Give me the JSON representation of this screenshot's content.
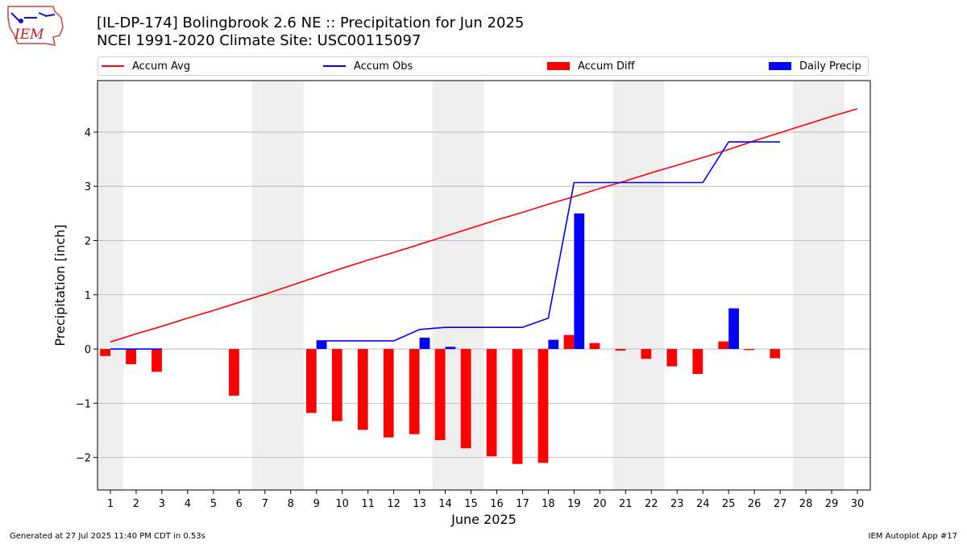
{
  "header": {
    "title_line1": "[IL-DP-174] Bolingbrook 2.6 NE :: Precipitation for Jun 2025",
    "title_line2": "NCEI 1991-2020 Climate Site: USC00115097",
    "logo_text": "IEM"
  },
  "footer": {
    "left": "Generated at 27 Jul 2025 11:40 PM CDT in 0.53s",
    "right": "IEM Autoplot App #17"
  },
  "colors": {
    "accum_avg": "#ff0000",
    "accum_obs": "#0000ff",
    "accum_diff": "#ff0000",
    "daily_precip": "#0000ff",
    "weekend_shade": "#eeeeee",
    "grid": "#b0b0b0"
  },
  "chart_data": {
    "type": "bar",
    "xlabel": "June 2025",
    "ylabel": "Precipitation [inch]",
    "xlim": [
      0.5,
      30.5
    ],
    "ylim": [
      -2.6,
      4.95
    ],
    "yticks": [
      -2,
      -1,
      0,
      1,
      2,
      3,
      4
    ],
    "ytick_labels": [
      "−2",
      "−1",
      "0",
      "1",
      "2",
      "3",
      "4"
    ],
    "x": [
      1,
      2,
      3,
      4,
      5,
      6,
      7,
      8,
      9,
      10,
      11,
      12,
      13,
      14,
      15,
      16,
      17,
      18,
      19,
      20,
      21,
      22,
      23,
      24,
      25,
      26,
      27,
      28,
      29,
      30
    ],
    "weekend_days": [
      1,
      7,
      8,
      14,
      15,
      21,
      22,
      28,
      29
    ],
    "grid": "horizontal",
    "legend_position": "top",
    "series": [
      {
        "name": "Accum Avg",
        "type": "line",
        "values": [
          0.13,
          0.28,
          0.42,
          0.57,
          0.71,
          0.86,
          1.01,
          1.17,
          1.33,
          1.49,
          1.64,
          1.78,
          1.93,
          2.08,
          2.23,
          2.38,
          2.52,
          2.67,
          2.81,
          2.96,
          3.1,
          3.25,
          3.39,
          3.53,
          3.68,
          3.84,
          3.99,
          4.14,
          4.29,
          4.43
        ]
      },
      {
        "name": "Accum Obs",
        "type": "line",
        "values": [
          0.0,
          0.0,
          0.0,
          null,
          null,
          null,
          null,
          null,
          0.15,
          0.15,
          0.15,
          0.15,
          0.36,
          0.4,
          0.4,
          0.4,
          0.4,
          0.57,
          3.07,
          3.07,
          3.07,
          3.07,
          3.07,
          3.07,
          3.82,
          3.82,
          3.82,
          null,
          null,
          null
        ]
      },
      {
        "name": "Accum Diff",
        "type": "bar",
        "values": [
          -0.13,
          -0.28,
          -0.42,
          null,
          null,
          -0.86,
          null,
          null,
          -1.18,
          -1.33,
          -1.49,
          -1.63,
          -1.57,
          -1.68,
          -1.83,
          -1.98,
          -2.12,
          -2.1,
          0.26,
          0.11,
          -0.03,
          -0.18,
          -0.32,
          -0.46,
          0.14,
          -0.02,
          -0.17,
          null,
          null,
          null
        ]
      },
      {
        "name": "Daily Precip",
        "type": "bar",
        "values": [
          0.0,
          0.0,
          0.0,
          null,
          null,
          null,
          null,
          null,
          0.15,
          0.0,
          0.0,
          0.0,
          0.21,
          0.04,
          0.0,
          0.0,
          0.0,
          0.17,
          2.5,
          0.0,
          0.0,
          0.0,
          0.0,
          0.0,
          0.75,
          0.0,
          0.0,
          null,
          null,
          null
        ]
      }
    ]
  }
}
